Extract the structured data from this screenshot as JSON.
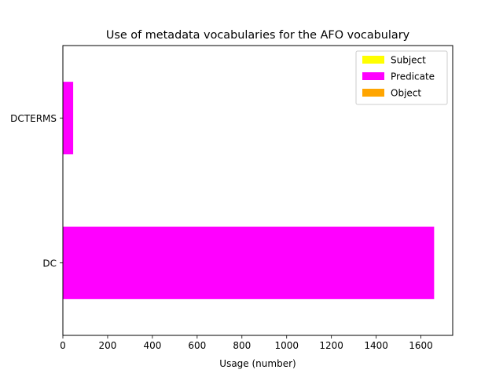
{
  "chart_data": {
    "type": "bar",
    "orientation": "horizontal",
    "stacked": true,
    "title": "Use of metadata vocabularies for the AFO vocabulary",
    "xlabel": "Usage (number)",
    "ylabel": "",
    "categories": [
      "DC",
      "DCTERMS"
    ],
    "series": [
      {
        "name": "Subject",
        "color": "#ffff00",
        "values": [
          0,
          0
        ]
      },
      {
        "name": "Predicate",
        "color": "#ff00ff",
        "values": [
          1659,
          46
        ]
      },
      {
        "name": "Object",
        "color": "#ffa500",
        "values": [
          0,
          0
        ]
      }
    ],
    "xlim": [
      0,
      1742
    ],
    "xticks": [
      0,
      200,
      400,
      600,
      800,
      1000,
      1200,
      1400,
      1600
    ],
    "grid": false,
    "legend_position": "top-right"
  }
}
